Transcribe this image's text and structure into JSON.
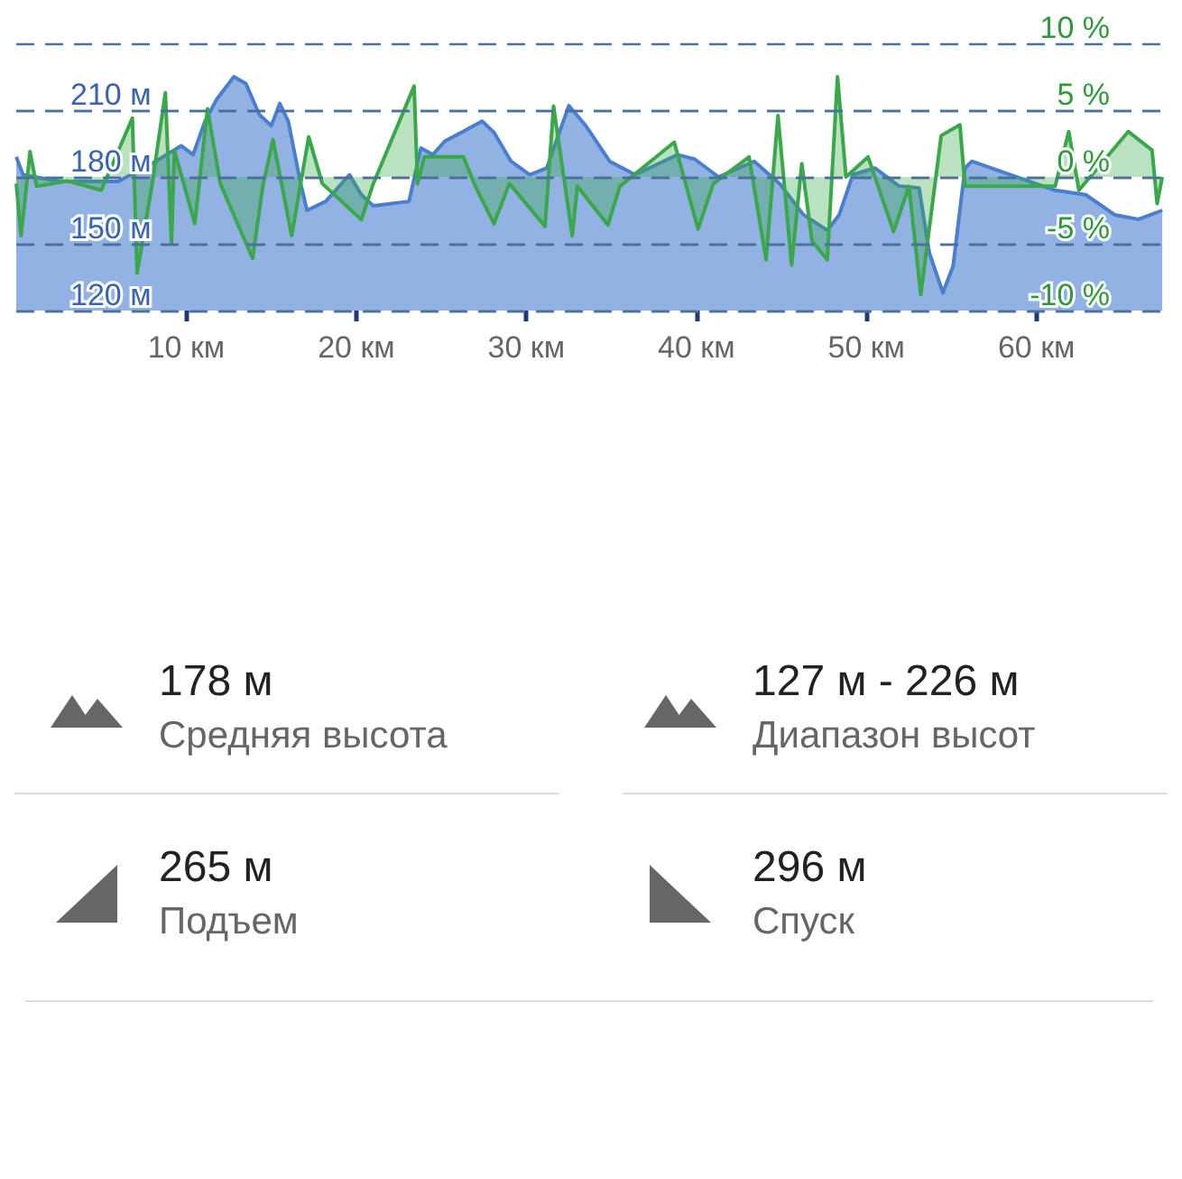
{
  "chart_data": {
    "type": "area",
    "xlim": [
      0,
      67.5
    ],
    "ylim": [
      120,
      240
    ],
    "y2lim": [
      -10,
      10
    ],
    "xticks": [
      {
        "value": 10,
        "label": "10 км"
      },
      {
        "value": 20,
        "label": "20 км"
      },
      {
        "value": 30,
        "label": "30 км"
      },
      {
        "value": 40,
        "label": "40 км"
      },
      {
        "value": 50,
        "label": "50 км"
      },
      {
        "value": 60,
        "label": "60 км"
      }
    ],
    "yticks": [
      {
        "value": 120,
        "label": "120 м"
      },
      {
        "value": 150,
        "label": "150 м"
      },
      {
        "value": 180,
        "label": "180 м"
      },
      {
        "value": 210,
        "label": "210 м"
      }
    ],
    "y2ticks": [
      {
        "value": -10,
        "label": "-10 %"
      },
      {
        "value": -5,
        "label": "-5 %"
      },
      {
        "value": 0,
        "label": "0 %"
      },
      {
        "value": 5,
        "label": "5 %"
      },
      {
        "value": 10,
        "label": "10 %"
      }
    ],
    "grid": "y",
    "series": [
      {
        "color": "#4a7fd0",
        "x": [
          0,
          0.4,
          1.1,
          2.6,
          6,
          8.2,
          9.7,
          10.4,
          11.1,
          11.8,
          12.8,
          13.5,
          14.3,
          15,
          15.5,
          16,
          16.7,
          17.1,
          18.2,
          19.6,
          20.3,
          21,
          23.1,
          23.8,
          24.5,
          25.2,
          27.4,
          28.1,
          29.1,
          30.2,
          31.2,
          32.5,
          33.5,
          34.9,
          36.4,
          38.9,
          39.9,
          41.3,
          43.4,
          44.9,
          46.3,
          47.7,
          48.4,
          49.2,
          50.5,
          51.9,
          53.1,
          53.7,
          54.5,
          55.1,
          55.8,
          56.2,
          61.1,
          62.9,
          64.6,
          66,
          67.4
        ],
        "values": [
          189,
          181,
          180,
          178,
          178,
          187,
          194,
          190,
          205,
          215,
          225,
          222,
          208,
          203,
          213,
          205,
          178,
          165,
          169,
          181,
          172,
          167,
          169,
          193,
          190,
          196,
          205,
          200,
          187,
          181,
          184,
          212,
          203,
          187,
          181,
          190,
          188,
          180,
          187,
          177,
          163,
          156,
          163,
          181,
          184,
          176,
          175,
          146,
          128,
          140,
          184,
          187,
          174,
          172,
          163,
          161,
          165
        ]
      },
      {
        "axis": "y2",
        "color": "#3aa84a",
        "x": [
          0,
          0.28,
          0.6,
          0.81,
          1.2,
          3,
          5,
          6.83,
          7.11,
          8,
          8.77,
          9.13,
          9.3,
          10.5,
          11.25,
          12,
          13.9,
          14.5,
          15.1,
          16.2,
          17.2,
          18,
          20.3,
          21,
          23.4,
          23.6,
          24,
          26.3,
          27,
          28.1,
          29,
          31.1,
          31.6,
          32.7,
          33,
          34.8,
          35.5,
          38.7,
          40.1,
          41,
          43.1,
          44.1,
          44.8,
          45.2,
          45.6,
          46.2,
          46.8,
          47.7,
          48.3,
          48.8,
          50.1,
          51.6,
          52.5,
          53.2,
          54.4,
          55.5,
          55.8,
          61.1,
          61.9,
          62.5,
          65.4,
          66.8,
          67.1,
          67.4
        ],
        "values": [
          -0.5,
          -4.4,
          -0.7,
          1.9,
          -0.7,
          -0.3,
          -1,
          4.4,
          -7.2,
          -0.5,
          6.3,
          -5,
          2,
          -3.5,
          5.1,
          -0.5,
          -6.1,
          -0.7,
          2.8,
          -4.4,
          3,
          -0.5,
          -3.2,
          -0.5,
          6.8,
          -0.5,
          1.5,
          1.5,
          -0.7,
          -3.5,
          -0.5,
          -3.7,
          5.3,
          -4.4,
          -0.7,
          -3.6,
          -0.7,
          2.6,
          -3.9,
          -0.5,
          1.5,
          -6.2,
          4.6,
          -1,
          -6.6,
          1,
          -4.8,
          -6.2,
          7.5,
          0,
          1.5,
          -4.1,
          -0.7,
          -8.8,
          3.1,
          3.9,
          -0.7,
          -0.7,
          3.4,
          -1,
          3.4,
          2,
          -2,
          0
        ]
      }
    ],
    "annotations": [
      "178 м",
      "Средняя высота",
      "127 м - 226 м",
      "Диапазон высот",
      "265 м",
      "Подъем",
      "296 м",
      "Спуск"
    ]
  }
}
